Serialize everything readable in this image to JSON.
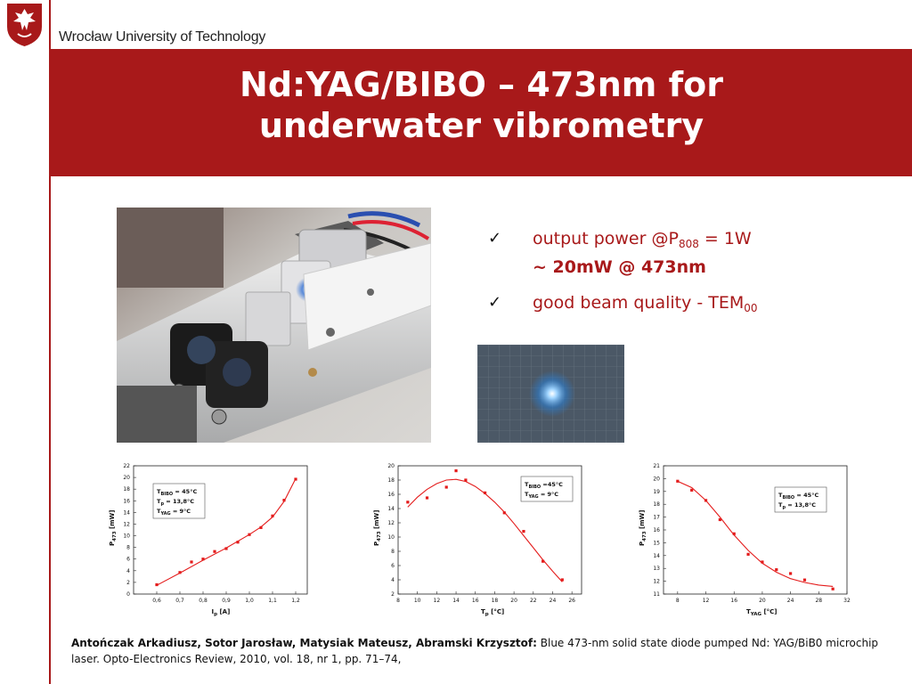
{
  "header": {
    "university": "Wrocław University of Technology",
    "brand_color": "#a8191a",
    "logo_icon": "eagle-crest-icon"
  },
  "title": {
    "line1": "Nd:YAG/BIBO – 473nm for",
    "line2": "underwater vibrometry"
  },
  "bullets": [
    {
      "text": "output power @P",
      "sub": "808",
      "suffix": " = 1W",
      "line2": "~ 20mW @ 473nm"
    },
    {
      "text": "good beam quality - TEM",
      "sub": "00"
    }
  ],
  "photos": [
    {
      "name": "laser-setup-photo",
      "alt": "Nd:YAG/BIBO microchip laser setup"
    },
    {
      "name": "beam-spot-photo",
      "alt": "blue beam spot"
    }
  ],
  "chart_data": [
    {
      "type": "scatter",
      "xlabel_main": "I",
      "xlabel_sub": "p",
      "xlabel_unit": " [A]",
      "ylabel_main": "P",
      "ylabel_sub": "473",
      "ylabel_unit": " [mW]",
      "xlim": [
        0.5,
        1.25
      ],
      "ylim": [
        0,
        22
      ],
      "xticks": [
        "0,6",
        "0,7",
        "0,8",
        "0,9",
        "1,0",
        "1,1",
        "1,2"
      ],
      "xtick_values": [
        0.6,
        0.7,
        0.8,
        0.9,
        1.0,
        1.1,
        1.2
      ],
      "yticks": [
        "0",
        "2",
        "4",
        "6",
        "8",
        "10",
        "12",
        "14",
        "16",
        "18",
        "20",
        "22"
      ],
      "ytick_values": [
        0,
        2,
        4,
        6,
        8,
        10,
        12,
        14,
        16,
        18,
        20,
        22
      ],
      "legend": [
        {
          "main": "T",
          "sub": "BIBO",
          "value": " = 45°C"
        },
        {
          "main": "T",
          "sub": "p",
          "value": " = 13,8°C"
        },
        {
          "main": "T",
          "sub": "YAG",
          "value": " = 9°C"
        }
      ],
      "x": [
        0.6,
        0.7,
        0.75,
        0.8,
        0.85,
        0.9,
        0.95,
        1.0,
        1.05,
        1.1,
        1.15,
        1.2
      ],
      "y": [
        1.6,
        3.7,
        5.5,
        6.0,
        7.3,
        7.8,
        8.9,
        10.2,
        11.4,
        13.4,
        16.1,
        19.7
      ],
      "fit_x": [
        0.6,
        0.7,
        0.8,
        0.9,
        1.0,
        1.05,
        1.1,
        1.15,
        1.2
      ],
      "fit_y": [
        1.5,
        3.6,
        5.8,
        7.9,
        10.2,
        11.5,
        13.2,
        15.9,
        19.8
      ]
    },
    {
      "type": "scatter",
      "xlabel_main": "T",
      "xlabel_sub": "p",
      "xlabel_unit": " [°C]",
      "ylabel_main": "P",
      "ylabel_sub": "473",
      "ylabel_unit": " [mW]",
      "xlim": [
        8,
        27
      ],
      "ylim": [
        2,
        20
      ],
      "xticks": [
        "8",
        "10",
        "12",
        "14",
        "16",
        "18",
        "20",
        "22",
        "24",
        "26"
      ],
      "xtick_values": [
        8,
        10,
        12,
        14,
        16,
        18,
        20,
        22,
        24,
        26
      ],
      "yticks": [
        "2",
        "4",
        "6",
        "8",
        "10",
        "12",
        "14",
        "16",
        "18",
        "20"
      ],
      "ytick_values": [
        2,
        4,
        6,
        8,
        10,
        12,
        14,
        16,
        18,
        20
      ],
      "legend": [
        {
          "main": "T",
          "sub": "BIBO",
          "value": " =45°C"
        },
        {
          "main": "T",
          "sub": "YAG",
          "value": " = 9°C"
        }
      ],
      "x": [
        9,
        11,
        13,
        14,
        15,
        17,
        19,
        21,
        23,
        25
      ],
      "y": [
        14.9,
        15.5,
        17.0,
        19.3,
        18.0,
        16.2,
        13.4,
        10.8,
        6.6,
        4.0
      ],
      "fit_x": [
        9,
        10,
        11,
        12,
        13,
        14,
        15,
        16,
        17,
        18,
        19,
        20,
        21,
        22,
        23,
        24,
        25
      ],
      "fit_y": [
        14.2,
        15.6,
        16.7,
        17.5,
        18.0,
        18.1,
        17.8,
        17.1,
        16.1,
        14.9,
        13.5,
        11.9,
        10.2,
        8.5,
        6.8,
        5.2,
        3.7
      ]
    },
    {
      "type": "scatter",
      "xlabel_main": "T",
      "xlabel_sub": "YAG",
      "xlabel_unit": " [°C]",
      "ylabel_main": "P",
      "ylabel_sub": "473",
      "ylabel_unit": " [mW]",
      "xlim": [
        6,
        32
      ],
      "ylim": [
        11,
        21
      ],
      "xticks": [
        "8",
        "12",
        "16",
        "20",
        "24",
        "28",
        "32"
      ],
      "xtick_values": [
        8,
        12,
        16,
        20,
        24,
        28,
        32
      ],
      "yticks": [
        "11",
        "12",
        "13",
        "14",
        "15",
        "16",
        "17",
        "18",
        "19",
        "20",
        "21"
      ],
      "ytick_values": [
        11,
        12,
        13,
        14,
        15,
        16,
        17,
        18,
        19,
        20,
        21
      ],
      "legend": [
        {
          "main": "T",
          "sub": "BIBO",
          "value": " = 45°C"
        },
        {
          "main": "T",
          "sub": "p",
          "value": " = 13,8°C"
        }
      ],
      "x": [
        8,
        10,
        12,
        14,
        16,
        18,
        20,
        22,
        24,
        26,
        30
      ],
      "y": [
        19.8,
        19.1,
        18.3,
        16.8,
        15.7,
        14.1,
        13.5,
        12.9,
        12.6,
        12.1,
        11.4
      ],
      "fit_x": [
        8,
        10,
        12,
        14,
        16,
        18,
        20,
        22,
        24,
        26,
        28,
        30
      ],
      "fit_y": [
        19.8,
        19.3,
        18.3,
        17.0,
        15.6,
        14.4,
        13.4,
        12.7,
        12.2,
        11.9,
        11.7,
        11.6
      ]
    }
  ],
  "reference": {
    "authors": "Antończak Arkadiusz, Sotor Jarosław, Matysiak Mateusz, Abramski Krzysztof:",
    "text": " Blue 473-nm solid state diode pumped Nd: YAG/BiB0 microchip laser. Opto-Electronics Review, 2010, vol. 18, nr 1, pp. 71–74,"
  }
}
